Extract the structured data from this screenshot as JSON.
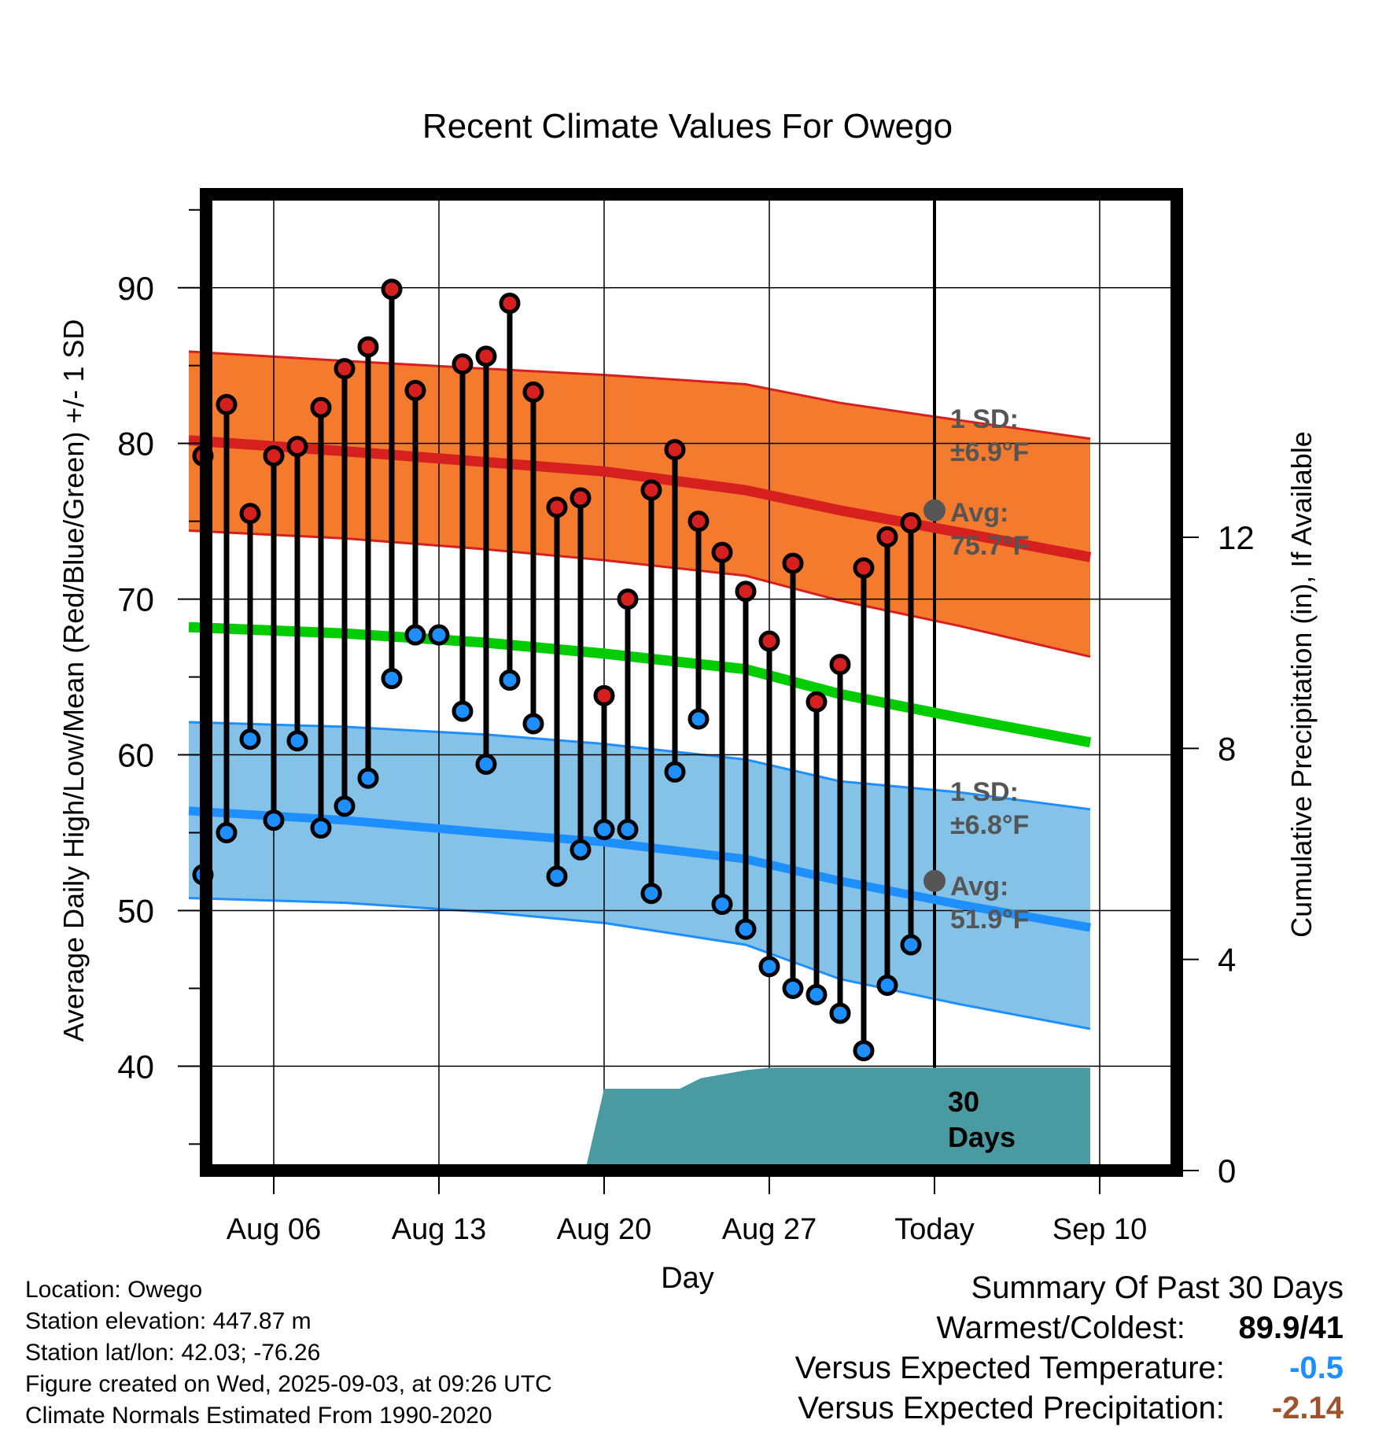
{
  "chart_data": {
    "type": "line",
    "title": "Recent Climate Values For Owego",
    "xlabel": "Day",
    "ylabel": "Average Daily High/Low/Mean (Red/Blue/Green) +/- 1 SD",
    "y2label": "Cumulative Precipitation (in), If Available",
    "ylim": [
      33.3,
      96
    ],
    "y2lim": [
      0,
      18.5
    ],
    "y_ticks": [
      "40",
      "50",
      "60",
      "70",
      "80",
      "90"
    ],
    "y2_ticks": [
      "0",
      "4",
      "8",
      "12"
    ],
    "x_ticks": [
      "Aug 06",
      "Aug 13",
      "Aug 20",
      "Aug 27",
      "Today",
      "Sep 10"
    ],
    "today_label": "Today",
    "grid": true,
    "x_days": [
      3,
      4,
      5,
      6,
      7,
      8,
      9,
      10,
      11,
      12,
      13,
      14,
      15,
      16,
      17,
      18,
      19,
      20,
      21,
      22,
      23,
      24,
      25,
      26,
      27,
      28,
      29,
      30,
      31,
      32,
      33
    ],
    "daily_high": [
      79.2,
      82.5,
      75.5,
      79.2,
      79.8,
      82.3,
      84.8,
      86.2,
      89.9,
      83.4,
      null,
      85.1,
      85.6,
      89.0,
      83.3,
      75.9,
      76.5,
      63.8,
      70.0,
      77.0,
      79.6,
      75.0,
      73.0,
      70.5,
      67.3,
      72.3,
      63.4,
      65.8,
      72.0,
      74.0,
      74.9
    ],
    "daily_low": [
      52.3,
      55.0,
      61.0,
      55.8,
      60.9,
      55.3,
      56.7,
      58.5,
      64.9,
      67.7,
      67.7,
      62.8,
      59.4,
      64.8,
      62.0,
      52.2,
      53.9,
      55.2,
      55.2,
      51.1,
      58.9,
      62.3,
      50.4,
      48.8,
      46.4,
      45.0,
      44.6,
      43.4,
      41.0,
      45.2,
      47.8
    ],
    "normals": {
      "x_days": [
        2.4,
        9,
        15,
        20,
        26,
        30,
        35,
        40.6
      ],
      "high_mean": [
        80.2,
        79.5,
        78.8,
        78.2,
        77.0,
        75.7,
        74.3,
        72.7
      ],
      "high_upper": [
        85.9,
        85.3,
        84.8,
        84.4,
        83.8,
        82.6,
        81.5,
        80.3
      ],
      "high_lower": [
        74.4,
        73.9,
        73.2,
        72.5,
        71.5,
        69.9,
        68.3,
        66.3
      ],
      "mean": [
        68.2,
        67.8,
        67.2,
        66.5,
        65.5,
        63.9,
        62.4,
        60.8
      ],
      "low_mean": [
        56.4,
        55.8,
        55.0,
        54.4,
        53.3,
        51.9,
        50.4,
        48.9
      ],
      "low_upper": [
        62.1,
        61.8,
        61.3,
        60.7,
        59.7,
        58.3,
        57.6,
        56.5
      ],
      "low_lower": [
        50.8,
        50.5,
        49.9,
        49.2,
        47.8,
        45.6,
        44.0,
        42.4
      ]
    },
    "precipitation": {
      "x_days": [
        19.2,
        20.0,
        23.2,
        24.1,
        26.0,
        27.0,
        29.5,
        40.6
      ],
      "values": [
        0,
        1.55,
        1.55,
        1.75,
        1.9,
        1.95,
        1.95,
        1.95
      ]
    },
    "annotations": {
      "high_sd": "1 SD:",
      "high_sd_value": "±6.9°F",
      "high_avg": "Avg:",
      "high_avg_value": "75.7°F",
      "low_sd": "1 SD:",
      "low_sd_value": "±6.8°F",
      "low_avg": "Avg:",
      "low_avg_value": "51.9°F",
      "precip_days": "30",
      "precip_days_unit": "Days",
      "today_high_avg": 75.7,
      "today_low_avg": 51.9
    },
    "colors": {
      "high": "#d62020",
      "high_band": "#f47a2e",
      "low": "#1e8fff",
      "low_band": "#85c2e8",
      "mean": "#00cc00",
      "precip": "#4a9aa2",
      "annotation": "#555555"
    }
  },
  "info": {
    "location": "Location: Owego",
    "elevation": "Station elevation: 447.87 m",
    "latlon": "Station lat/lon: 42.03; -76.26",
    "created": "Figure created on Wed, 2025-09-03, at 09:26 UTC",
    "normals": "Climate Normals Estimated From 1990-2020"
  },
  "summary": {
    "title": "Summary Of Past 30 Days",
    "warm_cold_label": "Warmest/Coldest:",
    "warm_cold_value": "89.9/41",
    "temp_label": "Versus Expected Temperature:",
    "temp_value": "-0.5",
    "temp_color": "#1e8fff",
    "precip_label": "Versus Expected Precipitation:",
    "precip_value": "-2.14",
    "precip_color": "#a0522d"
  }
}
